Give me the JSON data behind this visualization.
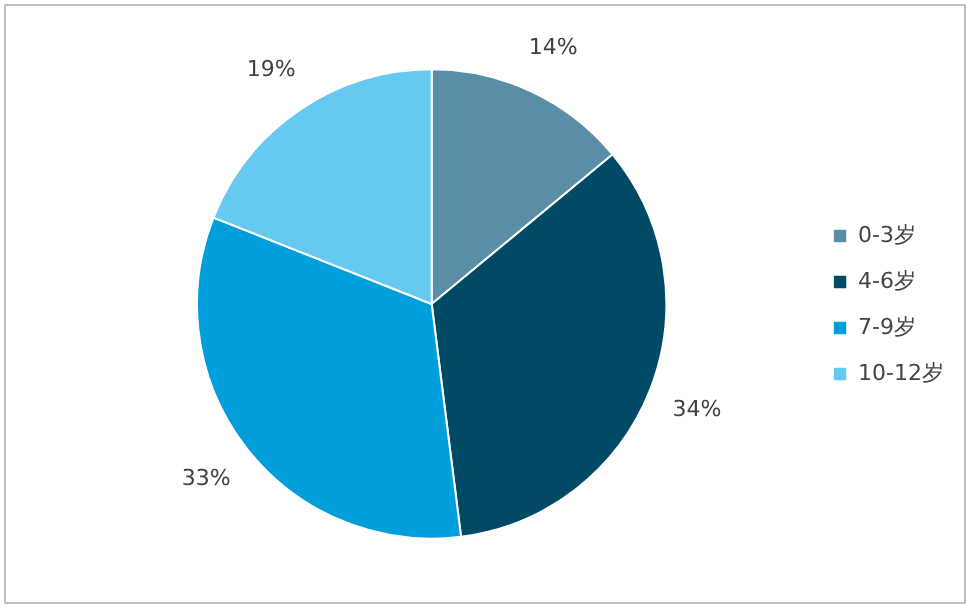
{
  "chart_data": {
    "type": "pie",
    "categories": [
      "0-3岁",
      "4-6岁",
      "7-9岁",
      "10-12岁"
    ],
    "values": [
      14,
      34,
      33,
      19
    ],
    "colors": [
      "#5a8ea6",
      "#004a66",
      "#009fdb",
      "#66c9f0"
    ],
    "value_labels": [
      "14%",
      "34%",
      "33%",
      "19%"
    ],
    "legend": "right"
  }
}
